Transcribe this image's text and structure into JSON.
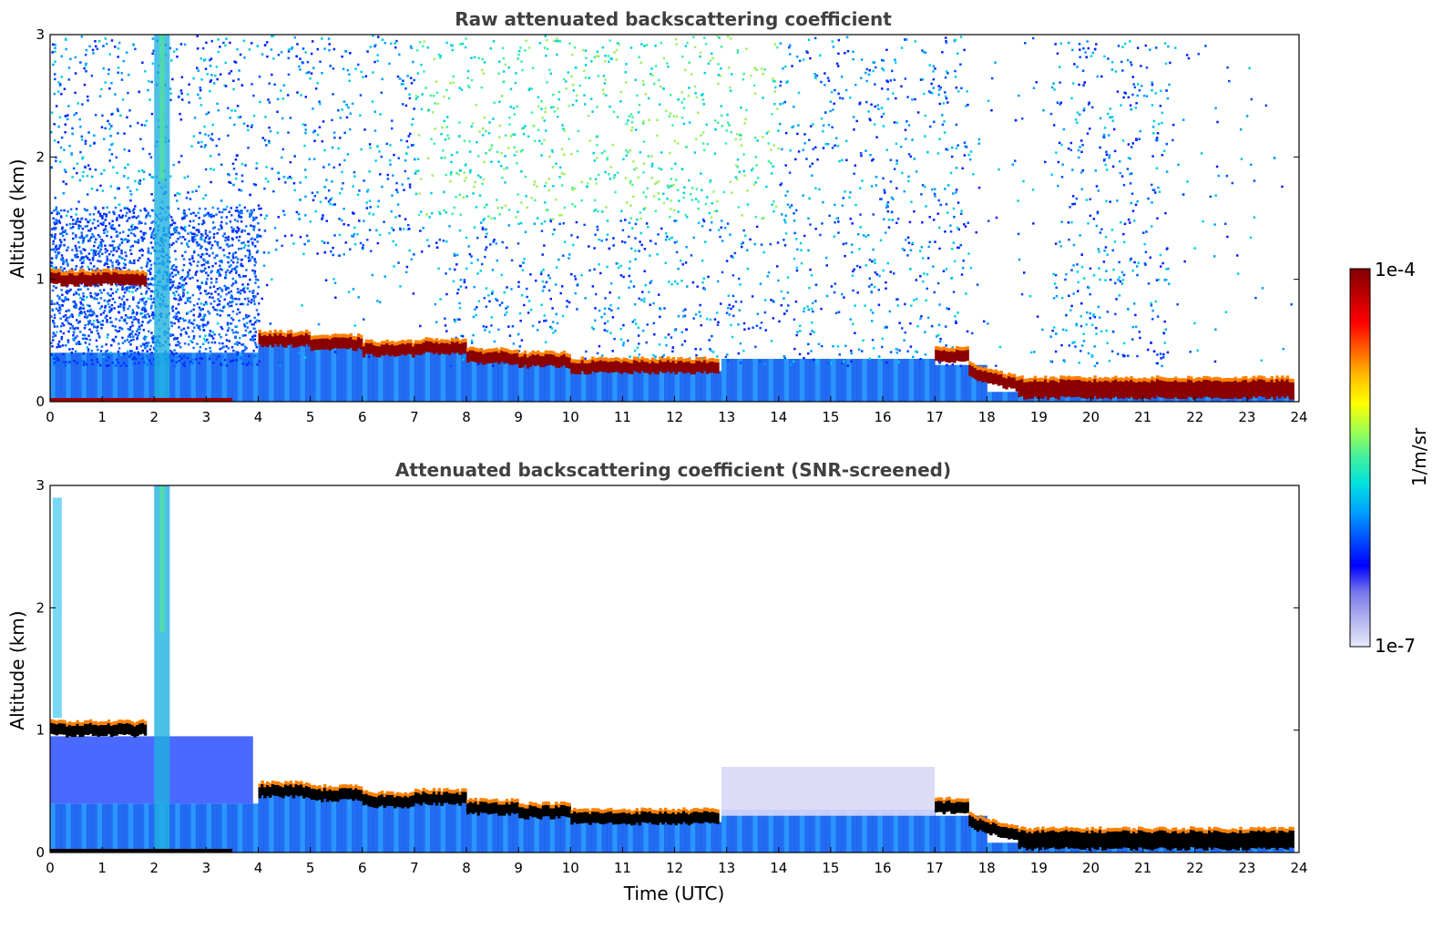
{
  "chart_data": [
    {
      "type": "heatmap",
      "title": "Raw attenuated backscattering coefficient",
      "xlabel": "",
      "ylabel": "Altitude (km)",
      "xlim": [
        0,
        24
      ],
      "ylim": [
        0,
        3
      ],
      "x_ticks": [
        "0",
        "1",
        "2",
        "3",
        "4",
        "5",
        "6",
        "7",
        "8",
        "9",
        "10",
        "11",
        "12",
        "13",
        "14",
        "15",
        "16",
        "17",
        "18",
        "19",
        "20",
        "21",
        "22",
        "23",
        "24"
      ],
      "y_ticks": [
        "0",
        "1",
        "2",
        "3"
      ],
      "screened": false,
      "layers": {
        "cloud_base_km": [
          {
            "t": [
              0.0,
              1.8
            ],
            "z": 1.0
          },
          {
            "t": [
              4.0,
              5.0
            ],
            "z": 0.5
          },
          {
            "t": [
              6.0,
              7.0
            ],
            "z": 0.42
          },
          {
            "t": [
              8.0,
              9.0
            ],
            "z": 0.35
          },
          {
            "t": [
              10.0,
              12.8
            ],
            "z": 0.28
          },
          {
            "t": [
              17.0,
              17.6
            ],
            "z": 0.35
          },
          {
            "t": [
              18.0,
              23.8
            ],
            "z": 0.1
          }
        ],
        "aerosol_column_hours": [
          2.0,
          2.3
        ]
      }
    },
    {
      "type": "heatmap",
      "title": "Attenuated backscattering coefficient (SNR-screened)",
      "xlabel": "Time (UTC)",
      "ylabel": "Altitude (km)",
      "xlim": [
        0,
        24
      ],
      "ylim": [
        0,
        3
      ],
      "x_ticks": [
        "0",
        "1",
        "2",
        "3",
        "4",
        "5",
        "6",
        "7",
        "8",
        "9",
        "10",
        "11",
        "12",
        "13",
        "14",
        "15",
        "16",
        "17",
        "18",
        "19",
        "20",
        "21",
        "22",
        "23",
        "24"
      ],
      "y_ticks": [
        "0",
        "1",
        "2",
        "3"
      ],
      "screened": true
    }
  ],
  "colorbar": {
    "label": "1/m/sr",
    "max_label": "1e-4",
    "min_label": "1e-7",
    "scale": "log",
    "colors": [
      "#e8e8fa",
      "#b4b4f0",
      "#7878ec",
      "#0000ff",
      "#0050ff",
      "#00a0ff",
      "#00e0e0",
      "#40f0a0",
      "#a0ff50",
      "#ffff00",
      "#ffc000",
      "#ff6000",
      "#ff0000",
      "#c00000",
      "#800000"
    ]
  }
}
